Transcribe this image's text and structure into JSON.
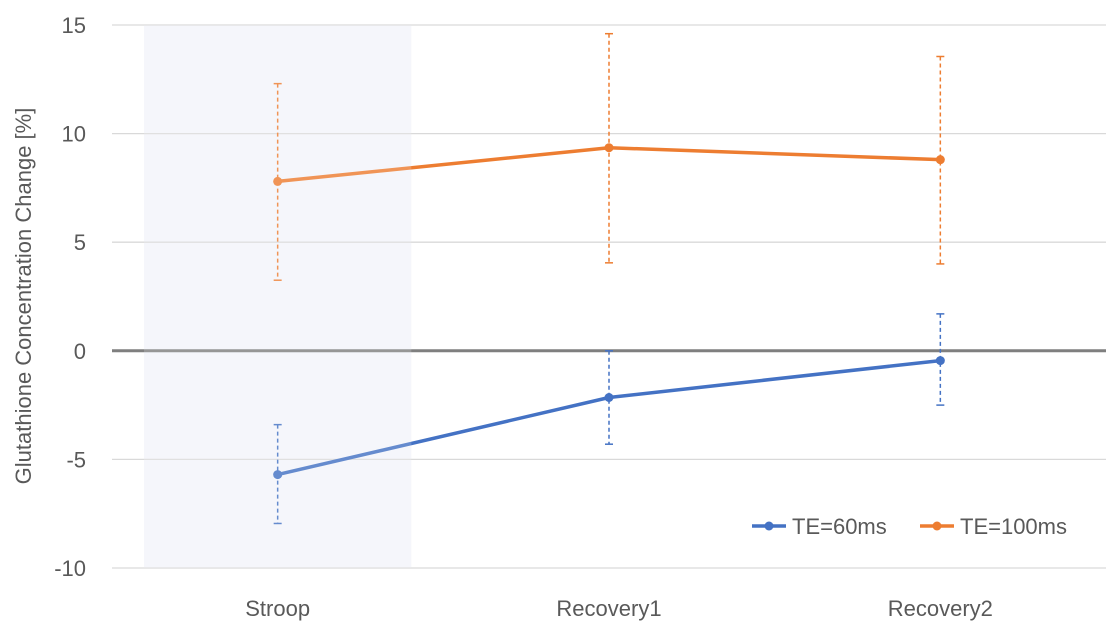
{
  "chart_data": {
    "type": "line",
    "title": "",
    "xlabel": "",
    "ylabel": "Glutathione Concentration Change [%]",
    "categories": [
      "Stroop",
      "Recovery1",
      "Recovery2"
    ],
    "ylim": [
      -10,
      15
    ],
    "yticks": [
      -10,
      -5,
      0,
      5,
      10,
      15
    ],
    "ytick_labels": [
      "-10",
      "-5",
      "0",
      "5",
      "10",
      "15"
    ],
    "grid": true,
    "legend_position": "bottom-right",
    "highlight": {
      "category": "Stroop",
      "color": "#f3f5fa"
    },
    "zero_line_color": "#7f7f7f",
    "series": [
      {
        "name": "TE=60ms",
        "color": "#4472c4",
        "values": [
          -5.7,
          -2.15,
          -0.45
        ],
        "error_low": [
          -7.95,
          -4.3,
          -2.5
        ],
        "error_high": [
          -3.4,
          0.0,
          1.7
        ]
      },
      {
        "name": "TE=100ms",
        "color": "#ed7d31",
        "values": [
          7.8,
          9.35,
          8.8
        ],
        "error_low": [
          3.25,
          4.05,
          4.0
        ],
        "error_high": [
          12.3,
          14.6,
          13.55
        ]
      }
    ]
  }
}
